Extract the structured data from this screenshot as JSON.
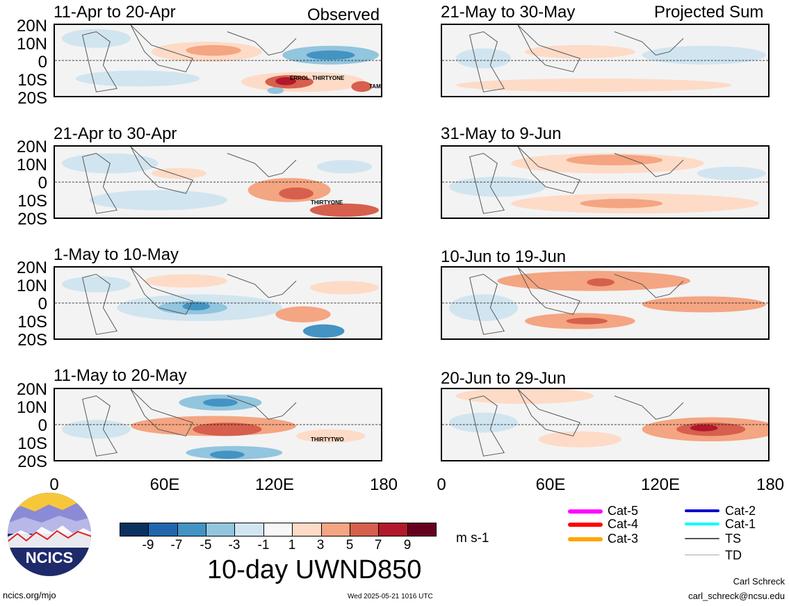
{
  "panels_left": [
    {
      "title": "11-Apr to 20-Apr",
      "corner": "Observed",
      "storms": [
        "ERROL",
        "THIRTYONE",
        "TAM"
      ]
    },
    {
      "title": "21-Apr to 30-Apr",
      "corner": "",
      "storms": [
        "THIRTYONE"
      ]
    },
    {
      "title": "1-May to 10-May",
      "corner": "",
      "storms": []
    },
    {
      "title": "11-May to 20-May",
      "corner": "",
      "storms": [
        "THIRTYTWO"
      ]
    }
  ],
  "panels_right": [
    {
      "title": "21-May to 30-May",
      "corner": "Projected Sum"
    },
    {
      "title": "31-May to 9-Jun",
      "corner": ""
    },
    {
      "title": "10-Jun to 19-Jun",
      "corner": ""
    },
    {
      "title": "20-Jun to 29-Jun",
      "corner": ""
    }
  ],
  "lat_labels": [
    "20N",
    "10N",
    "0",
    "10S",
    "20S"
  ],
  "lon_labels": [
    "0",
    "60E",
    "120E",
    "180"
  ],
  "colorbar": {
    "ticks": [
      "-9",
      "-7",
      "-5",
      "-3",
      "-1",
      "1",
      "3",
      "5",
      "7",
      "9"
    ],
    "colors": [
      "#0a3160",
      "#2166ac",
      "#4393c3",
      "#92c5de",
      "#d1e5f0",
      "#f7f7f7",
      "#fddbc7",
      "#f4a582",
      "#d6604d",
      "#b2182b",
      "#67001f"
    ],
    "units": "m s-1",
    "title": "10-day UWND850"
  },
  "legend": [
    {
      "label": "Cat-5",
      "color": "#ff00ff"
    },
    {
      "label": "Cat-4",
      "color": "#ff0000"
    },
    {
      "label": "Cat-3",
      "color": "#ffa500"
    },
    {
      "label": "Cat-2",
      "color": "#0000cc"
    },
    {
      "label": "Cat-1",
      "color": "#00ffff"
    },
    {
      "label": "TS",
      "color": "#555555"
    },
    {
      "label": "TD",
      "color": "#aaaaaa"
    }
  ],
  "logo": {
    "text": "NCICS"
  },
  "footer": {
    "url": "ncics.org/mjo",
    "timestamp": "Wed 2025-05-21 1016 UTC",
    "author": "Carl Schreck",
    "email": "carl_schreck@ncsu.edu"
  }
}
